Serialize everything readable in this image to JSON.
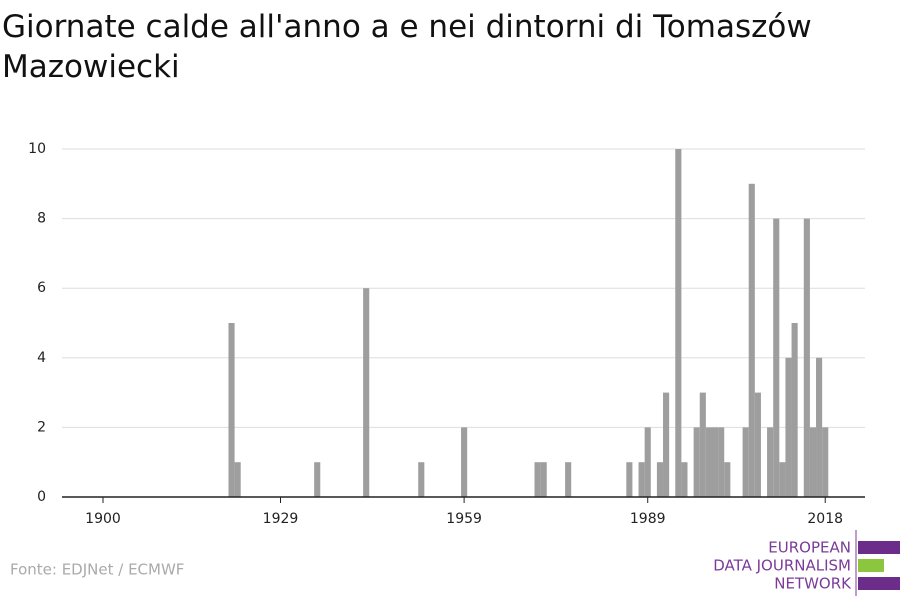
{
  "chart_data": {
    "type": "bar",
    "title": "Giornate calde all'anno a e nei dintorni di Tomaszów Mazowiecki",
    "x": [
      1921,
      1922,
      1935,
      1943,
      1952,
      1959,
      1971,
      1972,
      1976,
      1986,
      1988,
      1989,
      1991,
      1992,
      1994,
      1995,
      1997,
      1998,
      1999,
      2000,
      2001,
      2002,
      2005,
      2006,
      2007,
      2009,
      2010,
      2011,
      2012,
      2013,
      2015,
      2016,
      2017,
      2018
    ],
    "values": [
      5,
      1,
      1,
      6,
      1,
      2,
      1,
      1,
      1,
      1,
      1,
      2,
      1,
      3,
      10,
      1,
      2,
      3,
      2,
      2,
      2,
      1,
      2,
      9,
      3,
      2,
      8,
      1,
      4,
      5,
      8,
      2,
      4,
      2
    ],
    "color": "#9e9e9e",
    "xlim": [
      1893.3,
      2024.5
    ],
    "xticks": [
      1900,
      1929,
      1959,
      1989,
      2018
    ],
    "ylim": [
      0,
      10
    ],
    "yticks": [
      0,
      2,
      4,
      6,
      8,
      10
    ],
    "grid": true
  },
  "source": "Fonte: EDJNet / ECMWF",
  "logo": [
    "EUROPEAN",
    "DATA JOURNALISM",
    "NETWORK"
  ]
}
